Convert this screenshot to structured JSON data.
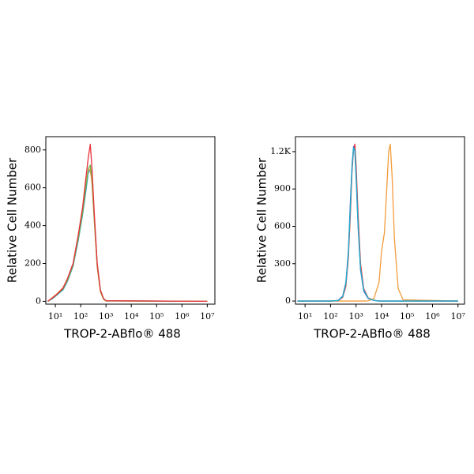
{
  "chart_data": [
    {
      "type": "line",
      "xscale": "log",
      "xlabel": "TROP-2-ABflo® 488",
      "ylabel": "Relative Cell Number",
      "xlim": [
        4.2,
        20000000
      ],
      "ylim": [
        -15,
        870
      ],
      "xticks": [
        {
          "value": 10,
          "label": "10¹"
        },
        {
          "value": 100,
          "label": "10²"
        },
        {
          "value": 1000,
          "label": "10³"
        },
        {
          "value": 10000,
          "label": "10⁴"
        },
        {
          "value": 100000,
          "label": "10⁵"
        },
        {
          "value": 1000000,
          "label": "10⁶"
        },
        {
          "value": 10000000,
          "label": "10⁷"
        }
      ],
      "yticks": [
        0,
        200,
        400,
        600,
        800
      ],
      "x": [
        5,
        8,
        12,
        20,
        30,
        50,
        80,
        120,
        160,
        200,
        240,
        280,
        350,
        450,
        600,
        800,
        1000,
        10000000
      ],
      "series": [
        {
          "color": "#2aa0d8",
          "values": [
            0,
            15,
            35,
            60,
            105,
            185,
            320,
            460,
            580,
            680,
            690,
            640,
            430,
            200,
            60,
            14,
            3,
            0
          ]
        },
        {
          "color": "#f39c3c",
          "values": [
            0,
            22,
            42,
            72,
            115,
            195,
            340,
            480,
            620,
            690,
            700,
            620,
            410,
            180,
            50,
            10,
            2,
            0
          ]
        },
        {
          "color": "#6ab04c",
          "values": [
            0,
            18,
            38,
            65,
            110,
            190,
            330,
            470,
            600,
            700,
            720,
            650,
            420,
            190,
            55,
            12,
            2,
            0
          ]
        },
        {
          "color": "#e8303a",
          "values": [
            0,
            20,
            40,
            70,
            120,
            200,
            350,
            500,
            650,
            760,
            830,
            700,
            450,
            200,
            60,
            15,
            3,
            0
          ]
        }
      ]
    },
    {
      "type": "line",
      "xscale": "log",
      "xlabel": "TROP-2-ABflo® 488",
      "ylabel": "Relative Cell Number",
      "xlim": [
        4.2,
        18000000
      ],
      "ylim": [
        -25,
        1320
      ],
      "xticks": [
        {
          "value": 10,
          "label": "10¹"
        },
        {
          "value": 100,
          "label": "10²"
        },
        {
          "value": 1000,
          "label": "10³"
        },
        {
          "value": 10000,
          "label": "10⁴"
        },
        {
          "value": 100000,
          "label": "10⁵"
        },
        {
          "value": 1000000,
          "label": "10⁶"
        },
        {
          "value": 10000000,
          "label": "10⁷"
        }
      ],
      "yticks": [
        0,
        300,
        600,
        900,
        {
          "value": 1200,
          "label": "1.2K"
        }
      ],
      "x": [
        5,
        20,
        100,
        200,
        300,
        400,
        500,
        600,
        700,
        800,
        900,
        1000,
        1200,
        1500,
        2000,
        3000,
        5000,
        8000,
        10000,
        13000,
        16000,
        19000,
        22000,
        26000,
        32000,
        45000,
        70000,
        10000000
      ],
      "series": [
        {
          "color": "#f39c3c",
          "values": [
            0,
            0,
            0,
            0,
            0,
            0,
            0,
            0,
            0,
            0,
            0,
            0,
            0,
            0,
            0,
            2,
            20,
            150,
            400,
            550,
            900,
            1200,
            1260,
            1000,
            500,
            100,
            10,
            0
          ]
        },
        {
          "color": "#e8303a",
          "values": [
            0,
            0,
            0,
            3,
            30,
            120,
            350,
            700,
            1050,
            1220,
            1260,
            1100,
            700,
            300,
            100,
            25,
            5,
            0,
            0,
            0,
            0,
            0,
            0,
            0,
            0,
            0,
            0,
            0
          ]
        },
        {
          "color": "#3a5bd0",
          "values": [
            0,
            0,
            0,
            5,
            40,
            150,
            400,
            800,
            1100,
            1240,
            1200,
            1000,
            600,
            250,
            80,
            20,
            5,
            0,
            0,
            0,
            0,
            0,
            0,
            0,
            0,
            0,
            0,
            0
          ]
        },
        {
          "color": "#20b0c8",
          "values": [
            0,
            0,
            0,
            4,
            35,
            140,
            380,
            760,
            1080,
            1230,
            1210,
            1020,
            620,
            260,
            90,
            22,
            5,
            0,
            0,
            0,
            0,
            0,
            0,
            0,
            0,
            0,
            0,
            0
          ]
        }
      ]
    }
  ]
}
